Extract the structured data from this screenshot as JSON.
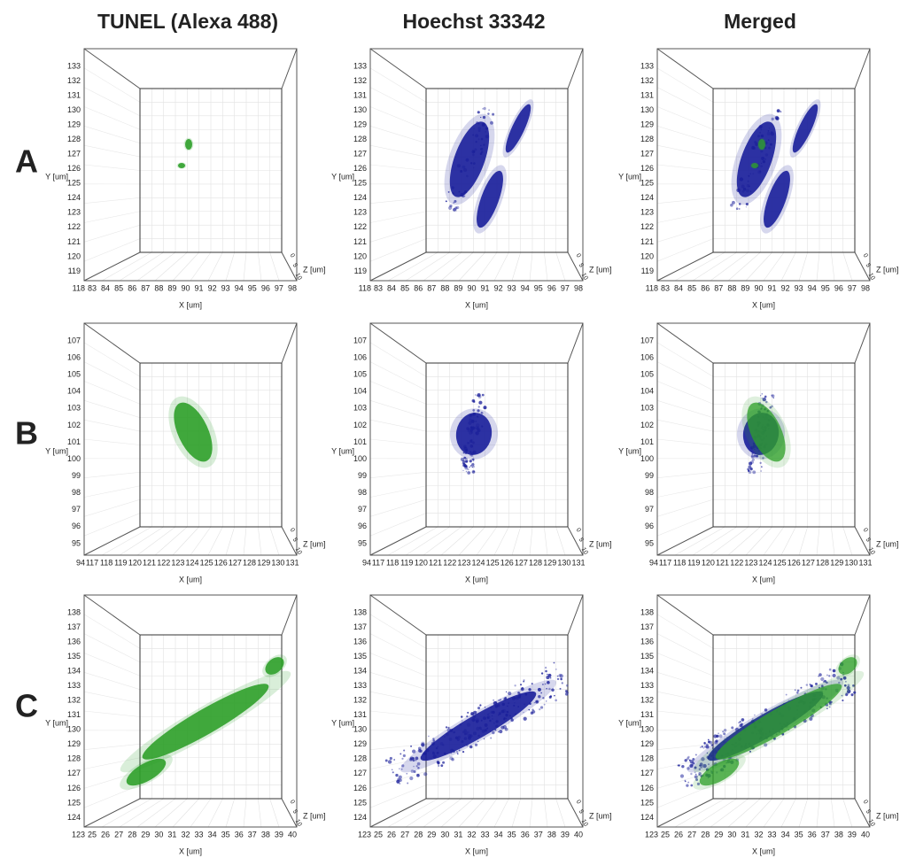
{
  "columns": [
    "TUNEL (Alexa 488)",
    "Hoechst 33342",
    "Merged"
  ],
  "rows": [
    {
      "label": "A",
      "y_ticks": [
        118,
        119,
        120,
        121,
        122,
        123,
        124,
        125,
        126,
        127,
        128,
        129,
        130,
        131,
        132,
        133
      ],
      "x_ticks": [
        83,
        84,
        85,
        86,
        87,
        88,
        89,
        90,
        91,
        92,
        93,
        94,
        95,
        96,
        97,
        98
      ],
      "z_ticks": [
        0,
        5,
        10
      ]
    },
    {
      "label": "B",
      "y_ticks": [
        94,
        95,
        96,
        97,
        98,
        99,
        100,
        101,
        102,
        103,
        104,
        105,
        106,
        107
      ],
      "x_ticks": [
        117,
        118,
        119,
        120,
        121,
        122,
        123,
        124,
        125,
        126,
        127,
        128,
        129,
        130,
        131
      ],
      "z_ticks": [
        0,
        5,
        10
      ]
    },
    {
      "label": "C",
      "y_ticks": [
        123,
        124,
        125,
        126,
        127,
        128,
        129,
        130,
        131,
        132,
        133,
        134,
        135,
        136,
        137,
        138
      ],
      "x_ticks": [
        25,
        26,
        27,
        28,
        29,
        30,
        31,
        32,
        33,
        34,
        35,
        36,
        37,
        38,
        39,
        40
      ],
      "z_ticks": [
        0,
        5,
        10
      ]
    }
  ],
  "axis_labels": {
    "x": "X [um]",
    "y": "Y [um]",
    "z": "Z [um]"
  }
}
